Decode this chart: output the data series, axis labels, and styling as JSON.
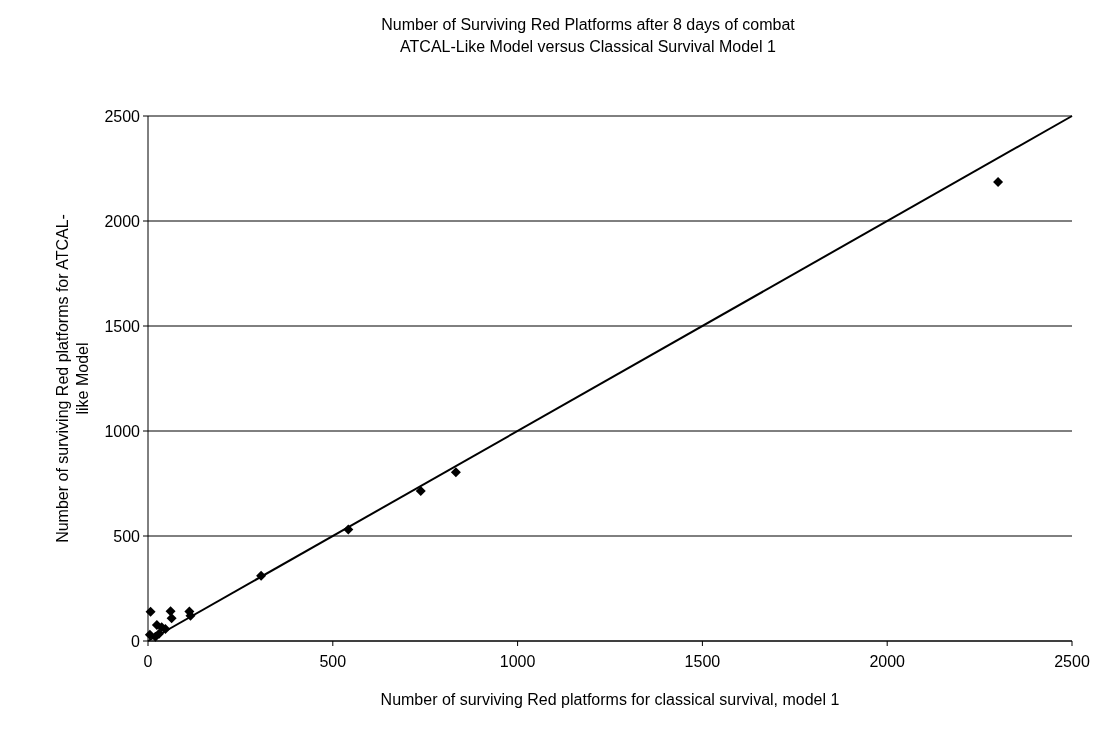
{
  "chart_data": {
    "type": "scatter",
    "title": "Number of Surviving Red Platforms after 8 days of combat",
    "subtitle": "ATCAL-Like Model versus Classical Survival Model 1",
    "xlabel": "Number of surviving Red platforms for classical survival, model 1",
    "ylabel": "Number of surviving Red platforms for ATCAL-like Model",
    "xlim": [
      0,
      2500
    ],
    "ylim": [
      0,
      2500
    ],
    "xticks": [
      0,
      500,
      1000,
      1500,
      2000,
      2500
    ],
    "yticks": [
      0,
      500,
      1000,
      1500,
      2000,
      2500
    ],
    "grid": "y",
    "marker": "diamond",
    "series": [
      {
        "color": "#000000",
        "x": [
          2300,
          833,
          738,
          542,
          306,
          7,
          61,
          64,
          24,
          112,
          115,
          37,
          47,
          5,
          20,
          30
        ],
        "values": [
          2186,
          804,
          714,
          531,
          311,
          139,
          142,
          108,
          76,
          140,
          120,
          66,
          57,
          30,
          20,
          35
        ]
      },
      {
        "type": "line",
        "marker": "none",
        "color": "#000000",
        "x": [
          0,
          2500
        ],
        "values": [
          0,
          2500
        ]
      }
    ]
  }
}
